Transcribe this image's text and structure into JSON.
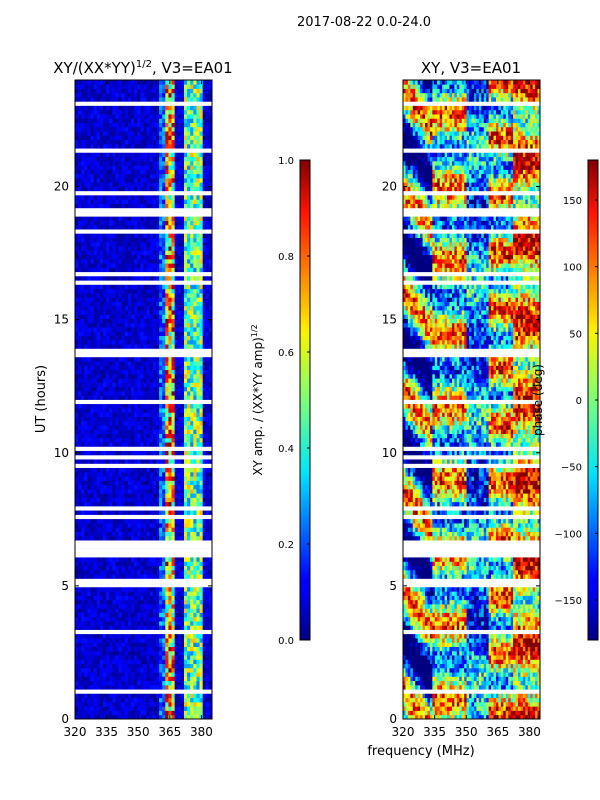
{
  "suptitle": "2017-08-22 0.0-24.0",
  "chart_data": [
    {
      "type": "heatmap",
      "title": "XY/(XX*YY)",
      "title_exp": "1/2",
      "title_suffix": ", V3=EA01",
      "xlabel": "",
      "ylabel": "UT (hours)",
      "xlim": [
        320,
        385
      ],
      "ylim": [
        0,
        24
      ],
      "xticks": [
        "320",
        "335",
        "350",
        "365",
        "380"
      ],
      "xtick_values": [
        320,
        335,
        350,
        365,
        380
      ],
      "yticks": [
        "0",
        "5",
        "10",
        "15",
        "20"
      ],
      "ytick_values": [
        0,
        5,
        10,
        15,
        20
      ],
      "colorbar": {
        "label": "XY amp. / (XX*YY amp)",
        "label_exp": "1/2",
        "range": [
          0.0,
          1.0
        ],
        "ticks": [
          "0.0",
          "0.2",
          "0.4",
          "0.6",
          "0.8",
          "1.0"
        ],
        "tick_values": [
          0.0,
          0.2,
          0.4,
          0.6,
          0.8,
          1.0
        ]
      }
    },
    {
      "type": "heatmap",
      "title": "XY, V3=EA01",
      "xlabel": "frequency (MHz)",
      "ylabel": "",
      "xlim": [
        320,
        385
      ],
      "ylim": [
        0,
        24
      ],
      "xticks": [
        "320",
        "335",
        "350",
        "365",
        "380"
      ],
      "xtick_values": [
        320,
        335,
        350,
        365,
        380
      ],
      "yticks": [
        "0",
        "5",
        "10",
        "15",
        "20"
      ],
      "ytick_values": [
        0,
        5,
        10,
        15,
        20
      ],
      "colorbar": {
        "label": "phase (deg)",
        "range": [
          -180,
          180
        ],
        "ticks": [
          "−150",
          "−100",
          "−50",
          "0",
          "50",
          "100",
          "150"
        ],
        "tick_values": [
          -150,
          -100,
          -50,
          0,
          50,
          100,
          150
        ]
      }
    }
  ]
}
